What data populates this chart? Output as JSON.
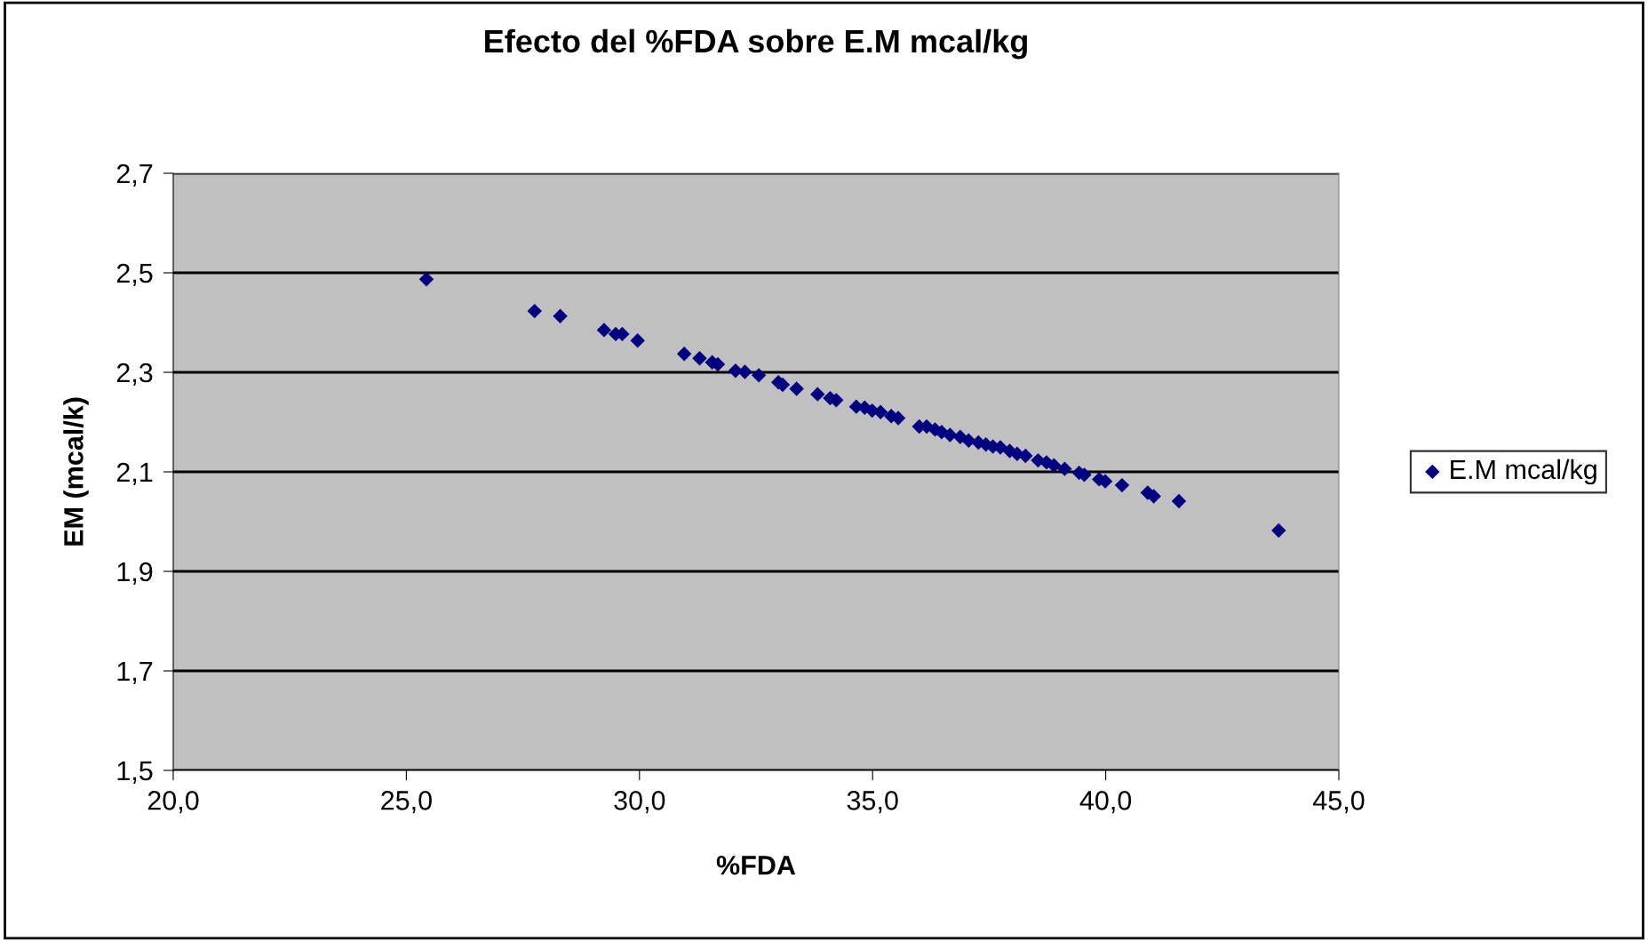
{
  "chart_data": {
    "type": "scatter",
    "title": "Efecto del %FDA sobre E.M mcal/kg",
    "xlabel": "%FDA",
    "ylabel": "EM (mcal/k)",
    "xlim": [
      20,
      45
    ],
    "xticks": [
      {
        "value": 20,
        "label": "20,0"
      },
      {
        "value": 25,
        "label": "25,0"
      },
      {
        "value": 30,
        "label": "30,0"
      },
      {
        "value": 35,
        "label": "35,0"
      },
      {
        "value": 40,
        "label": "40,0"
      },
      {
        "value": 45,
        "label": "45,0"
      }
    ],
    "ylim": [
      1.5,
      2.7
    ],
    "yticks": [
      {
        "value": 1.5,
        "label": "1,5"
      },
      {
        "value": 1.7,
        "label": "1,7"
      },
      {
        "value": 1.9,
        "label": "1,9"
      },
      {
        "value": 2.1,
        "label": "2,1"
      },
      {
        "value": 2.3,
        "label": "2,3"
      },
      {
        "value": 2.5,
        "label": "2,5"
      },
      {
        "value": 2.7,
        "label": "2,7"
      }
    ],
    "grid": "y",
    "legend": "right",
    "marker": "diamond",
    "series": [
      {
        "name": "E.M mcal/kg",
        "color": "#000080",
        "x": [
          25.43,
          27.75,
          28.3,
          29.24,
          29.49,
          29.63,
          29.96,
          30.96,
          31.29,
          31.56,
          31.68,
          32.06,
          32.26,
          32.56,
          32.98,
          33.07,
          33.37,
          33.82,
          34.09,
          34.22,
          34.65,
          34.83,
          34.99,
          35.17,
          35.4,
          35.55,
          36.0,
          36.16,
          36.34,
          36.48,
          36.66,
          36.88,
          37.06,
          37.27,
          37.43,
          37.58,
          37.74,
          37.94,
          38.1,
          38.28,
          38.55,
          38.73,
          38.89,
          39.12,
          39.43,
          39.54,
          39.86,
          39.99,
          40.35,
          40.9,
          41.03,
          41.57,
          43.71
        ],
        "values": [
          2.487,
          2.423,
          2.413,
          2.385,
          2.377,
          2.377,
          2.364,
          2.337,
          2.328,
          2.32,
          2.316,
          2.303,
          2.301,
          2.294,
          2.28,
          2.275,
          2.267,
          2.256,
          2.248,
          2.244,
          2.231,
          2.229,
          2.223,
          2.22,
          2.212,
          2.208,
          2.191,
          2.191,
          2.185,
          2.18,
          2.174,
          2.17,
          2.163,
          2.159,
          2.155,
          2.151,
          2.149,
          2.142,
          2.136,
          2.132,
          2.123,
          2.119,
          2.113,
          2.106,
          2.098,
          2.094,
          2.085,
          2.081,
          2.073,
          2.058,
          2.051,
          2.041,
          1.982
        ]
      }
    ]
  }
}
